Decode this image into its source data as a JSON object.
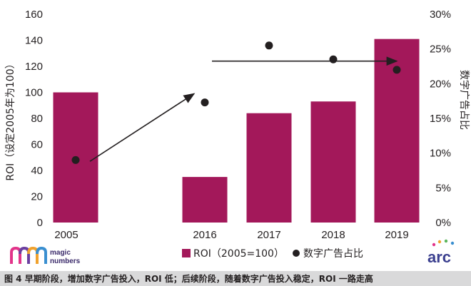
{
  "chart_data": {
    "type": "bar",
    "categories": [
      "2005",
      "2016",
      "2017",
      "2018",
      "2019"
    ],
    "series": [
      {
        "name": "ROI（2005=100）",
        "type": "bar",
        "axis": "left",
        "color": "#a3185a",
        "values": [
          100,
          35,
          84,
          93,
          141
        ]
      },
      {
        "name": "数字广告占比",
        "type": "scatter",
        "axis": "right",
        "color": "#231f20",
        "values": [
          9,
          17.3,
          25.5,
          23.5,
          22
        ]
      }
    ],
    "ylabel_left": "ROI（设定2005年为100）",
    "ylabel_right": "数字广告占比",
    "ylim_left": [
      0,
      160
    ],
    "ylim_right": [
      0,
      30
    ],
    "yticks_left": [
      "0",
      "20",
      "40",
      "60",
      "80",
      "100",
      "120",
      "140",
      "160"
    ],
    "yticks_right": [
      "0%",
      "5%",
      "10%",
      "15%",
      "20%",
      "25%",
      "30%"
    ],
    "legend": "bottom-center",
    "grid": false,
    "annotations": [
      {
        "type": "arrow",
        "from": [
          "2005",
          47
        ],
        "to": [
          "2016",
          99
        ]
      },
      {
        "type": "arrow",
        "from": [
          "2016",
          124
        ],
        "to": [
          "2019",
          124
        ]
      }
    ]
  },
  "legend": {
    "bar_label": "ROI（2005=100）",
    "dot_label": "数字广告占比"
  },
  "logos": {
    "left_line1": "magic",
    "left_line2": "numbers",
    "right": "arc"
  },
  "caption": "图 4  早期阶段，增加数字广告投入，ROI 低；后续阶段，随着数字广告投入稳定，ROI 一路走高",
  "colors": {
    "bar": "#a3185a",
    "dot": "#231f20",
    "caption_bg": "#d9d9da"
  }
}
